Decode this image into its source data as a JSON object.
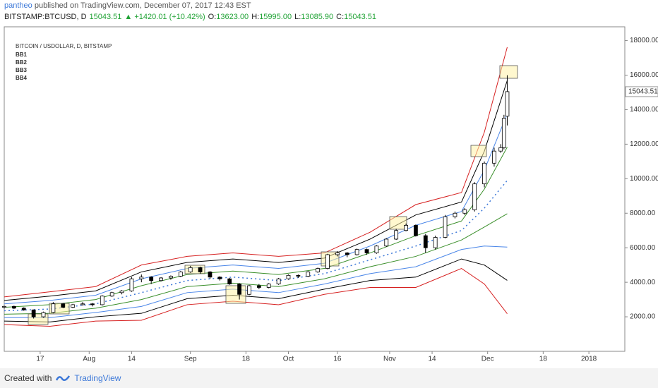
{
  "header": {
    "author": "pantheo",
    "published": "published on TradingView.com, December 07, 2017 12:43 EST",
    "symbol": "BITSTAMP:BTCUSD, D",
    "change": "▲ +1420.01 (+10.42%)",
    "ohlc": [
      {
        "label": "O:",
        "value": "13623.00"
      },
      {
        "label": "H:",
        "value": "15995.00"
      },
      {
        "label": "L:",
        "value": "13085.90"
      },
      {
        "label": "C:",
        "value": "15043.51"
      }
    ]
  },
  "chart_data": {
    "type": "candlestick",
    "title": "BITCOIN / USDOLLAR, D, BITSTAMP",
    "last_price": 15043.51,
    "xlim": [
      5,
      195
    ],
    "xticks": [
      {
        "value": 16,
        "label": "17"
      },
      {
        "value": 31,
        "label": "Aug"
      },
      {
        "value": 44,
        "label": "14"
      },
      {
        "value": 62,
        "label": "Sep"
      },
      {
        "value": 79,
        "label": "18"
      },
      {
        "value": 92,
        "label": "Oct"
      },
      {
        "value": 107,
        "label": "16"
      },
      {
        "value": 123,
        "label": "Nov"
      },
      {
        "value": 136,
        "label": "14"
      },
      {
        "value": 153,
        "label": "Dec"
      },
      {
        "value": 170,
        "label": "18"
      },
      {
        "value": 184,
        "label": "2018"
      }
    ],
    "ylim": [
      0,
      18800
    ],
    "yticks": [
      {
        "value": 2000,
        "label": "2000.00"
      },
      {
        "value": 4000,
        "label": "4000.00"
      },
      {
        "value": 6000,
        "label": "6000.00"
      },
      {
        "value": 8000,
        "label": "8000.00"
      },
      {
        "value": 10000,
        "label": "10000.00"
      },
      {
        "value": 12000,
        "label": "12000.00"
      },
      {
        "value": 14000,
        "label": "14000.00"
      },
      {
        "value": 16000,
        "label": "16000.00"
      },
      {
        "value": 18000,
        "label": "18000.00"
      }
    ],
    "up_color": "#ffffff",
    "down_color": "#000000",
    "x": [
      5,
      8,
      11,
      14,
      17,
      20,
      23,
      26,
      29,
      32,
      35,
      38,
      41,
      44,
      47,
      50,
      53,
      56,
      59,
      62,
      65,
      68,
      71,
      74,
      77,
      80,
      83,
      86,
      89,
      92,
      95,
      98,
      101,
      104,
      107,
      110,
      113,
      116,
      119,
      122,
      125,
      128,
      131,
      134,
      137,
      140,
      143,
      146,
      149,
      152,
      155,
      157,
      158,
      159
    ],
    "open": [
      2550,
      2600,
      2500,
      2400,
      2000,
      2250,
      2750,
      2550,
      2700,
      2750,
      2700,
      3200,
      3400,
      3500,
      4200,
      4300,
      4100,
      4250,
      4350,
      4600,
      4850,
      4600,
      4300,
      4200,
      3900,
      3300,
      3800,
      3700,
      3900,
      4200,
      4400,
      4350,
      4600,
      4800,
      5600,
      5700,
      5600,
      5900,
      5700,
      6100,
      6500,
      7000,
      7300,
      6700,
      6000,
      6600,
      7800,
      8000,
      8200,
      9700,
      10900,
      11600,
      11800,
      13623
    ],
    "high": [
      2650,
      2650,
      2550,
      2420,
      2300,
      2850,
      2800,
      2750,
      2850,
      2800,
      3250,
      3450,
      3550,
      4300,
      4450,
      4350,
      4300,
      4400,
      4650,
      4950,
      4900,
      4650,
      4350,
      4250,
      3950,
      3850,
      3900,
      3950,
      4250,
      4450,
      4450,
      4650,
      4850,
      5650,
      5800,
      5750,
      5950,
      5950,
      6150,
      6550,
      7100,
      7400,
      7350,
      6800,
      6700,
      7900,
      8100,
      8300,
      9800,
      11000,
      11800,
      12000,
      13700,
      15995
    ],
    "low": [
      2480,
      2450,
      2350,
      1900,
      1950,
      2200,
      2500,
      2500,
      2650,
      2600,
      2650,
      3150,
      3300,
      3450,
      4000,
      3900,
      4050,
      4150,
      4300,
      4550,
      4500,
      4200,
      4100,
      3850,
      3000,
      3250,
      3600,
      3650,
      3850,
      4150,
      4250,
      4300,
      4550,
      4750,
      5500,
      5450,
      5550,
      5600,
      5650,
      6050,
      6450,
      6950,
      6650,
      5700,
      5900,
      6550,
      7700,
      7900,
      8100,
      9500,
      10700,
      11500,
      11700,
      13085.9
    ],
    "close": [
      2600,
      2500,
      2400,
      2000,
      2250,
      2750,
      2550,
      2700,
      2750,
      2700,
      3200,
      3400,
      3500,
      4200,
      4300,
      4100,
      4250,
      4350,
      4600,
      4850,
      4600,
      4300,
      4200,
      3900,
      3300,
      3800,
      3700,
      3900,
      4200,
      4400,
      4350,
      4600,
      4800,
      5600,
      5700,
      5600,
      5900,
      5700,
      6100,
      6500,
      7000,
      7300,
      6700,
      6000,
      6600,
      7800,
      8000,
      8200,
      9700,
      10900,
      11600,
      11800,
      13500,
      15043.51
    ],
    "band_x": [
      5,
      19,
      33,
      47,
      61,
      75,
      89,
      103,
      117,
      131,
      145,
      152,
      159
    ],
    "basis": [
      2350,
      2450,
      2750,
      3400,
      4100,
      4300,
      4100,
      4500,
      5300,
      6100,
      7000,
      8300,
      9900
    ],
    "basis_color": "#3c78d8",
    "bands": [
      {
        "name": "BB1",
        "color": "#3a8f2a",
        "upper": [
          2550,
          2700,
          3000,
          3800,
          4450,
          4650,
          4450,
          4800,
          5700,
          6700,
          7550,
          9400,
          11830
        ],
        "lower": [
          2150,
          2200,
          2500,
          3000,
          3750,
          3950,
          3750,
          4200,
          4900,
          5500,
          6450,
          7200,
          7970
        ]
      },
      {
        "name": "BB2",
        "color": "#4a86e8",
        "upper": [
          2750,
          2950,
          3250,
          4200,
          4800,
          5000,
          4800,
          5100,
          6100,
          7300,
          8100,
          10500,
          13760
        ],
        "lower": [
          1950,
          1950,
          2250,
          2600,
          3400,
          3600,
          3400,
          3900,
          4500,
          4900,
          5900,
          6100,
          6040
        ]
      },
      {
        "name": "BB3",
        "color": "#000000",
        "upper": [
          2950,
          3200,
          3500,
          4600,
          5150,
          5350,
          5150,
          5400,
          6500,
          7900,
          8650,
          11600,
          15690
        ],
        "lower": [
          1750,
          1700,
          2000,
          2200,
          3050,
          3250,
          3050,
          3600,
          4100,
          4300,
          5350,
          5000,
          4110
        ]
      },
      {
        "name": "BB4",
        "color": "#d62020",
        "upper": [
          3150,
          3450,
          3750,
          5000,
          5500,
          5700,
          5500,
          5700,
          6900,
          8500,
          9200,
          12700,
          17620
        ],
        "lower": [
          1550,
          1450,
          1750,
          1800,
          2700,
          2900,
          2700,
          3300,
          3700,
          3700,
          4800,
          3900,
          2180
        ]
      }
    ]
  },
  "footer": {
    "created": "Created with",
    "brand": "TradingView"
  }
}
